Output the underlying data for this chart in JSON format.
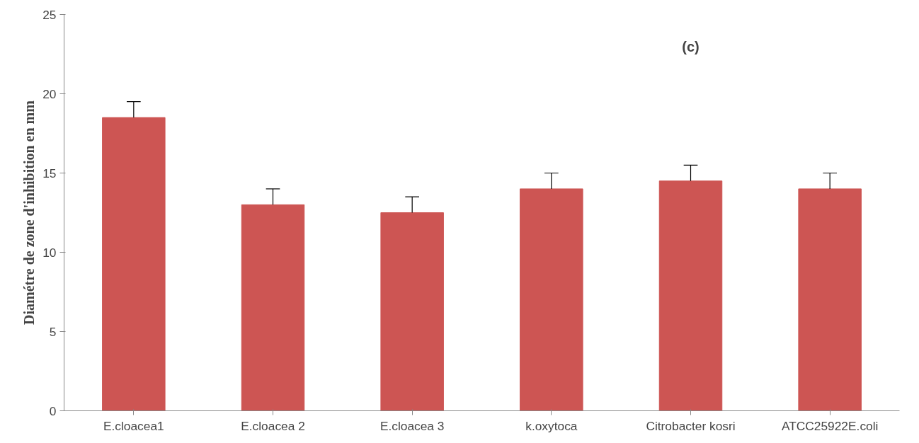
{
  "chart_data": {
    "type": "bar",
    "ylabel": "Diamétre de zone d'inhibition en mm",
    "categories": [
      "E.cloacea1",
      "E.cloacea 2",
      "E.cloacea 3",
      "k.oxytoca",
      "Citrobacter kosri",
      "ATCC25922E.coli"
    ],
    "values": [
      18.5,
      13,
      12.5,
      14,
      14.5,
      14
    ],
    "errors": [
      [
        18.5,
        19.5
      ],
      [
        13,
        14
      ],
      [
        12.5,
        13.5
      ],
      [
        14,
        15
      ],
      [
        14.5,
        15.5
      ],
      [
        14,
        15
      ]
    ],
    "color": "#cd5553",
    "ylim": [
      0,
      25
    ],
    "yticks": [
      0,
      5,
      10,
      15,
      20,
      25
    ],
    "grid": false,
    "annotations": [
      "(c)"
    ]
  }
}
